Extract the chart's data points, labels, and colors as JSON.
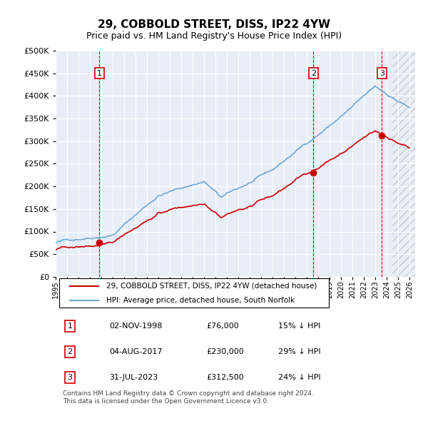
{
  "title": "29, COBBOLD STREET, DISS, IP22 4YW",
  "subtitle": "Price paid vs. HM Land Registry's House Price Index (HPI)",
  "ylabel_ticks": [
    "£0",
    "£50K",
    "£100K",
    "£150K",
    "£200K",
    "£250K",
    "£300K",
    "£350K",
    "£400K",
    "£450K",
    "£500K"
  ],
  "ytick_values": [
    0,
    50000,
    100000,
    150000,
    200000,
    250000,
    300000,
    350000,
    400000,
    450000,
    500000
  ],
  "xlim": [
    1995.0,
    2026.5
  ],
  "ylim": [
    0,
    500000
  ],
  "background_color": "#e8eef7",
  "plot_bg_color": "#e8eef7",
  "hpi_color": "#6fa8d6",
  "price_color": "#cc0000",
  "sale_marker_color": "#cc0000",
  "legend_line1": "29, COBBOLD STREET, DISS, IP22 4YW (detached house)",
  "legend_line2": "HPI: Average price, detached house, South Norfolk",
  "sales": [
    {
      "date_x": 1998.84,
      "price": 76000,
      "label": "1"
    },
    {
      "date_x": 2017.59,
      "price": 230000,
      "label": "2"
    },
    {
      "date_x": 2023.58,
      "price": 312500,
      "label": "3"
    }
  ],
  "sale_table": [
    {
      "num": "1",
      "date": "02-NOV-1998",
      "price": "£76,000",
      "hpi": "15% ↓ HPI"
    },
    {
      "num": "2",
      "date": "04-AUG-2017",
      "price": "£230,000",
      "hpi": "29% ↓ HPI"
    },
    {
      "num": "3",
      "date": "31-JUL-2023",
      "price": "£312,500",
      "hpi": "24% ↓ HPI"
    }
  ],
  "footer": "Contains HM Land Registry data © Crown copyright and database right 2024.\nThis data is licensed under the Open Government Licence v3.0.",
  "vline_color": "#cc0000",
  "hatch_color": "#cccccc",
  "grid_color": "#ffffff"
}
